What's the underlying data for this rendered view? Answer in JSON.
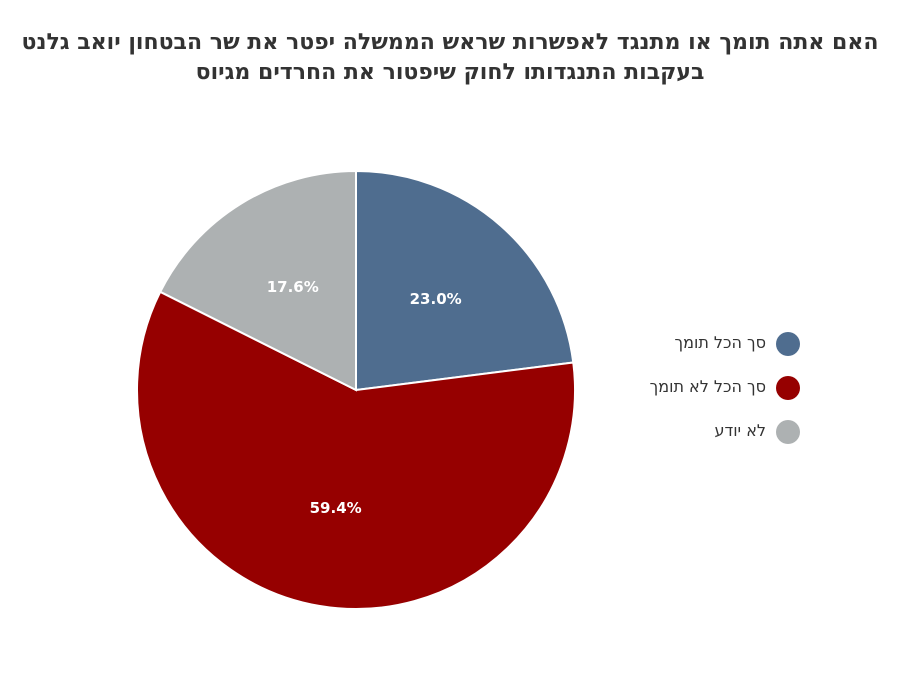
{
  "chart_data": {
    "type": "pie",
    "title_lines": [
      "האם אתה תומך או מתנגד לאפשרות שראש הממשלה יפטר את שר הבטחון יואב גלנט",
      "בעקבות התנגדותו לחוק שיפטור את החרדים מגיוס"
    ],
    "slices": [
      {
        "name": "סך הכל תומך",
        "value": 23.0,
        "label": "23.0%",
        "color": "#4f6d8f"
      },
      {
        "name": "סך הכל לא תומך",
        "value": 59.4,
        "label": "59.4%",
        "color": "#960000"
      },
      {
        "name": "לא יודע",
        "value": 17.6,
        "label": "17.6%",
        "color": "#adb1b2"
      }
    ],
    "legend_position": "right"
  }
}
